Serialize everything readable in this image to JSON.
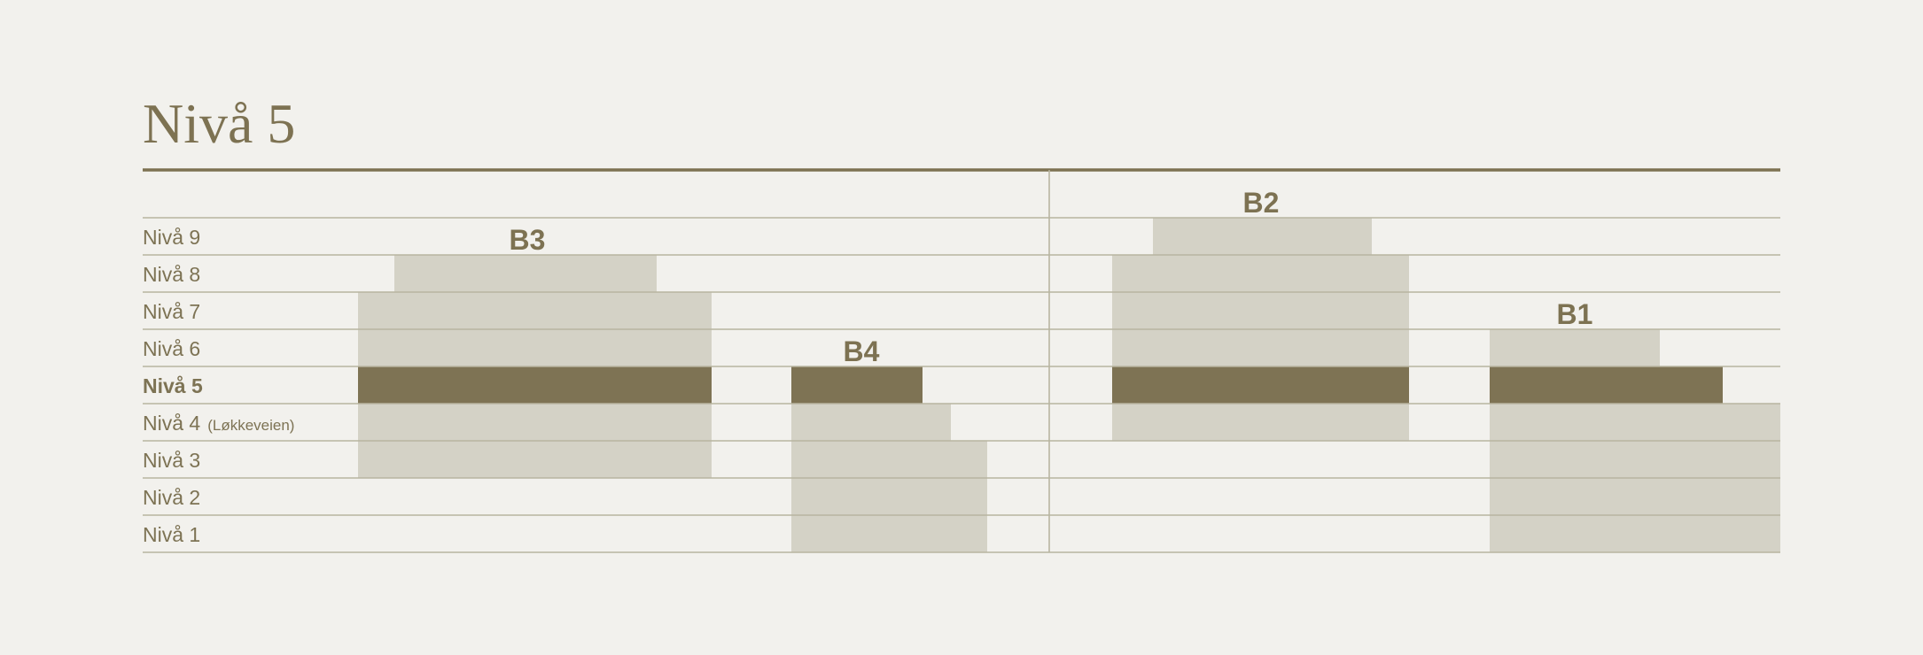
{
  "title": "Nivå 5",
  "colors": {
    "background": "#f2f1ed",
    "accent": "#7d7252",
    "block": "#d4d2c6",
    "highlight": "#7e7354",
    "grid": "#b8b5a0"
  },
  "levels": [
    {
      "level": 9,
      "label": "Nivå 9",
      "note": ""
    },
    {
      "level": 8,
      "label": "Nivå 8",
      "note": ""
    },
    {
      "level": 7,
      "label": "Nivå 7",
      "note": ""
    },
    {
      "level": 6,
      "label": "Nivå 6",
      "note": ""
    },
    {
      "level": 5,
      "label": "Nivå 5",
      "note": "",
      "current": true
    },
    {
      "level": 4,
      "label": "Nivå 4",
      "note": "(Løkkeveien)"
    },
    {
      "level": 3,
      "label": "Nivå 3",
      "note": ""
    },
    {
      "level": 2,
      "label": "Nivå 2",
      "note": ""
    },
    {
      "level": 1,
      "label": "Nivå 1",
      "note": ""
    }
  ],
  "highlight_level": 5,
  "buildings": [
    {
      "name": "B3",
      "levels": [
        3,
        4,
        5,
        6,
        7,
        8
      ]
    },
    {
      "name": "B4",
      "levels": [
        1,
        2,
        3,
        4,
        5
      ]
    },
    {
      "name": "B2",
      "levels": [
        4,
        5,
        6,
        7,
        8,
        9
      ]
    },
    {
      "name": "B1",
      "levels": [
        1,
        2,
        3,
        4,
        5,
        6
      ]
    }
  ]
}
